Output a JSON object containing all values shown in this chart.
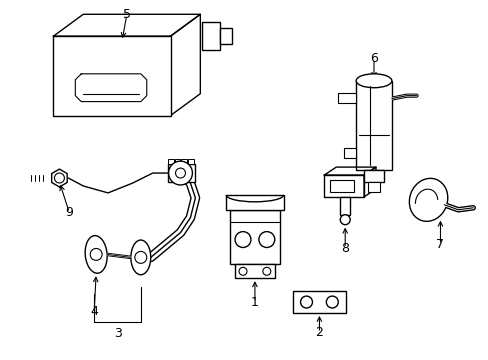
{
  "background_color": "#ffffff",
  "line_color": "#000000",
  "line_width": 1.0,
  "label_fontsize": 8,
  "fig_width": 4.89,
  "fig_height": 3.6,
  "dpi": 100
}
